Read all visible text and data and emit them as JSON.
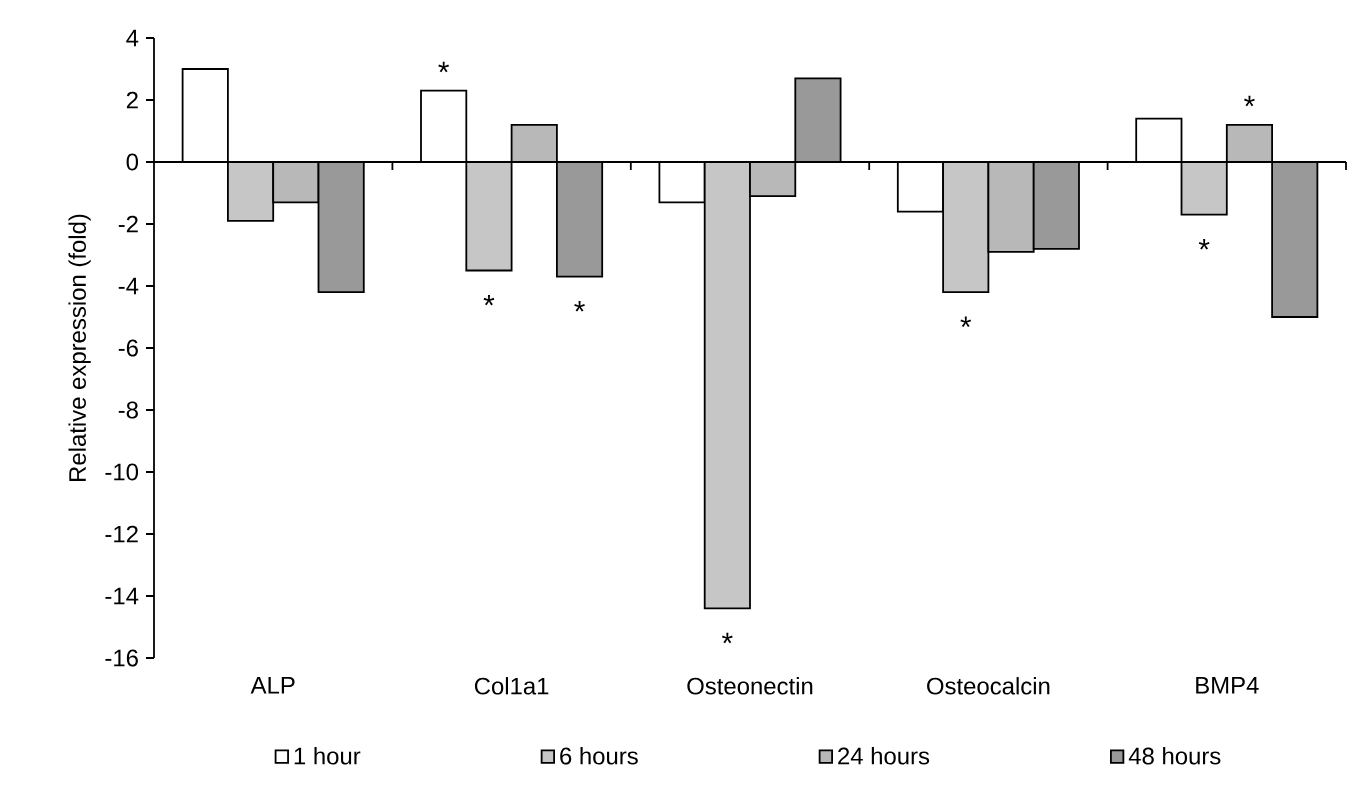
{
  "chart_data": {
    "type": "bar",
    "ylabel": "Relative expression (fold)",
    "categories": [
      "ALP",
      "Col1a1",
      "Osteonectin",
      "Osteocalcin",
      "BMP4"
    ],
    "series": [
      {
        "name": "1 hour",
        "color": "#ffffff",
        "values": [
          3.0,
          2.3,
          -1.3,
          -1.6,
          1.4
        ],
        "value_labels": [
          null,
          "*",
          null,
          null,
          null
        ]
      },
      {
        "name": "6 hours",
        "color": "#c6c6c6",
        "values": [
          -1.9,
          -3.5,
          -14.4,
          -4.2,
          -1.7
        ],
        "value_labels": [
          null,
          "*",
          "*",
          "*",
          "*"
        ]
      },
      {
        "name": "24 hours",
        "color": "#b8b8b8",
        "values": [
          -1.3,
          1.2,
          -1.1,
          -2.9,
          1.2
        ],
        "value_labels": [
          null,
          null,
          null,
          null,
          "*"
        ]
      },
      {
        "name": "48 hours",
        "color": "#999999",
        "values": [
          -4.2,
          -3.7,
          2.7,
          -2.8,
          -5.0
        ],
        "value_labels": [
          null,
          "*",
          null,
          null,
          null
        ]
      }
    ],
    "ylim": [
      -16,
      4
    ],
    "yticks": [
      -16,
      -14,
      -12,
      -10,
      -8,
      -6,
      -4,
      -2,
      0,
      2,
      4
    ],
    "legend": "bottom"
  }
}
